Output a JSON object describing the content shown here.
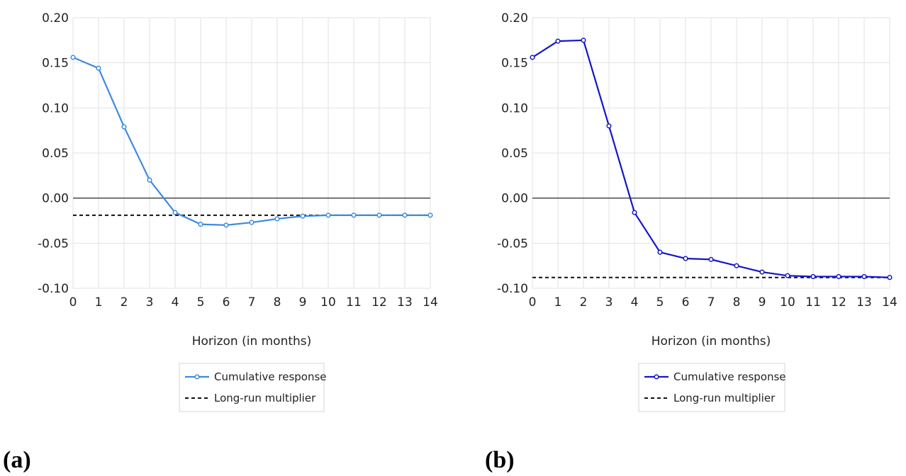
{
  "colors": {
    "grid": "#e2e2e2",
    "zero_line": "#111111",
    "multiplier_line": "#111111",
    "legend_border": "#d4d4d4"
  },
  "chart_data": [
    {
      "id": "a",
      "type": "line",
      "panel_label": "(a)",
      "xlabel": "Horizon (in months)",
      "ylabel": "",
      "x": [
        0,
        1,
        2,
        3,
        4,
        5,
        6,
        7,
        8,
        9,
        10,
        11,
        12,
        13,
        14
      ],
      "xlim": [
        0,
        14
      ],
      "ylim": [
        -0.1,
        0.2
      ],
      "yticks": [
        "0.20",
        "0.15",
        "0.10",
        "0.05",
        "0.00",
        "-0.05",
        "-0.10"
      ],
      "ytick_values": [
        0.2,
        0.15,
        0.1,
        0.05,
        0.0,
        -0.05,
        -0.1
      ],
      "xticks": [
        "0",
        "1",
        "2",
        "3",
        "4",
        "5",
        "6",
        "7",
        "8",
        "9",
        "10",
        "11",
        "12",
        "13",
        "14"
      ],
      "grid": true,
      "legend_position": "bottom-center",
      "series": [
        {
          "name": "Cumulative response",
          "style": "solid-with-markers",
          "color": "#3b8be0",
          "values": [
            0.156,
            0.144,
            0.079,
            0.02,
            -0.016,
            -0.029,
            -0.03,
            -0.027,
            -0.023,
            -0.02,
            -0.019,
            -0.019,
            -0.019,
            -0.019,
            -0.019
          ]
        },
        {
          "name": "Long-run multiplier",
          "style": "dashed",
          "color": "#111111",
          "constant": -0.019
        }
      ]
    },
    {
      "id": "b",
      "type": "line",
      "panel_label": "(b)",
      "xlabel": "Horizon (in months)",
      "ylabel": "",
      "x": [
        0,
        1,
        2,
        3,
        4,
        5,
        6,
        7,
        8,
        9,
        10,
        11,
        12,
        13,
        14
      ],
      "xlim": [
        0,
        14
      ],
      "ylim": [
        -0.1,
        0.2
      ],
      "yticks": [
        "0.20",
        "0.15",
        "0.10",
        "0.05",
        "0.00",
        "-0.05",
        "-0.10"
      ],
      "ytick_values": [
        0.2,
        0.15,
        0.1,
        0.05,
        0.0,
        -0.05,
        -0.1
      ],
      "xticks": [
        "0",
        "1",
        "2",
        "3",
        "4",
        "5",
        "6",
        "7",
        "8",
        "9",
        "10",
        "11",
        "12",
        "13",
        "14"
      ],
      "grid": true,
      "legend_position": "bottom-center",
      "series": [
        {
          "name": "Cumulative response",
          "style": "solid-with-markers",
          "color": "#1515c8",
          "values": [
            0.156,
            0.174,
            0.175,
            0.08,
            -0.016,
            -0.06,
            -0.067,
            -0.068,
            -0.075,
            -0.082,
            -0.086,
            -0.087,
            -0.087,
            -0.087,
            -0.088
          ]
        },
        {
          "name": "Long-run multiplier",
          "style": "dashed",
          "color": "#111111",
          "constant": -0.088
        }
      ]
    }
  ]
}
